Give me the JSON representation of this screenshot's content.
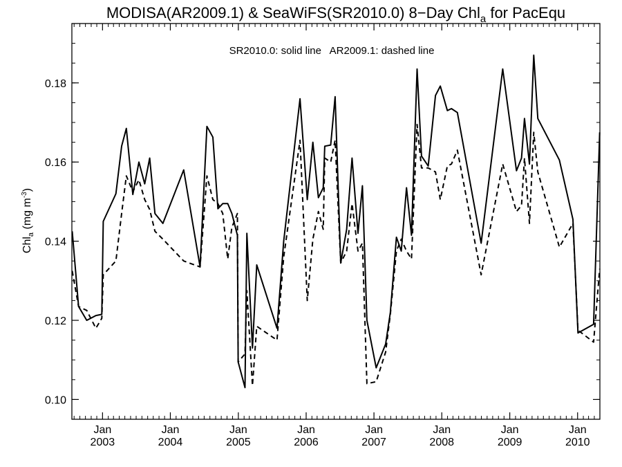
{
  "chart_data": {
    "type": "line",
    "title": {
      "main": "MODISA(AR2009.1) & SeaWiFS(SR2010.0) 8−Day Chl",
      "sub": "a",
      "suffix": " for PacEqu"
    },
    "annotation": "SR2010.0: solid line   AR2009.1: dashed line",
    "ylabel": {
      "base": "Chl",
      "sub": "a",
      "unit_open": " (mg m",
      "sup": "-3",
      "unit_close": ")"
    },
    "xlim": [
      "2002-07-20",
      "2010-05-01"
    ],
    "ylim": [
      0.095,
      0.195
    ],
    "y_ticks": [
      {
        "value": 0.1,
        "label": "0.10"
      },
      {
        "value": 0.12,
        "label": "0.12"
      },
      {
        "value": 0.14,
        "label": "0.14"
      },
      {
        "value": 0.16,
        "label": "0.16"
      },
      {
        "value": 0.18,
        "label": "0.18"
      }
    ],
    "x_ticks": [
      {
        "date": "2003-01-01",
        "month": "Jan",
        "year": "2003"
      },
      {
        "date": "2004-01-01",
        "month": "Jan",
        "year": "2004"
      },
      {
        "date": "2005-01-01",
        "month": "Jan",
        "year": "2005"
      },
      {
        "date": "2006-01-01",
        "month": "Jan",
        "year": "2006"
      },
      {
        "date": "2007-01-01",
        "month": "Jan",
        "year": "2007"
      },
      {
        "date": "2008-01-01",
        "month": "Jan",
        "year": "2008"
      },
      {
        "date": "2009-01-01",
        "month": "Jan",
        "year": "2009"
      },
      {
        "date": "2010-01-01",
        "month": "Jan",
        "year": "2010"
      }
    ],
    "series": [
      {
        "style": "solid",
        "points": [
          [
            "2002-07-22",
            0.1425
          ],
          [
            "2002-08-25",
            0.1235
          ],
          [
            "2002-10-08",
            0.12
          ],
          [
            "2002-11-26",
            0.1212
          ],
          [
            "2002-12-28",
            0.1215
          ],
          [
            "2003-01-05",
            0.145
          ],
          [
            "2003-03-14",
            0.152
          ],
          [
            "2003-04-14",
            0.164
          ],
          [
            "2003-05-09",
            0.1685
          ],
          [
            "2003-06-13",
            0.1518
          ],
          [
            "2003-07-16",
            0.16
          ],
          [
            "2003-08-16",
            0.1545
          ],
          [
            "2003-09-12",
            0.161
          ],
          [
            "2003-10-10",
            0.147
          ],
          [
            "2003-11-22",
            0.1445
          ],
          [
            "2004-03-13",
            0.158
          ],
          [
            "2004-06-09",
            0.1335
          ],
          [
            "2004-07-16",
            0.169
          ],
          [
            "2004-08-17",
            0.1663
          ],
          [
            "2004-09-13",
            0.1482
          ],
          [
            "2004-10-09",
            0.1495
          ],
          [
            "2004-11-05",
            0.1495
          ],
          [
            "2004-11-27",
            0.147
          ],
          [
            "2004-12-27",
            0.1415
          ],
          [
            "2004-12-31",
            0.1095
          ],
          [
            "2005-02-06",
            0.103
          ],
          [
            "2005-02-16",
            0.142
          ],
          [
            "2005-03-18",
            0.113
          ],
          [
            "2005-04-10",
            0.134
          ],
          [
            "2005-07-28",
            0.118
          ],
          [
            "2005-09-02",
            0.14
          ],
          [
            "2005-11-29",
            0.176
          ],
          [
            "2006-01-07",
            0.1505
          ],
          [
            "2006-02-06",
            0.165
          ],
          [
            "2006-03-08",
            0.151
          ],
          [
            "2006-04-03",
            0.1535
          ],
          [
            "2006-04-11",
            0.164
          ],
          [
            "2006-05-13",
            0.1643
          ],
          [
            "2006-06-06",
            0.1765
          ],
          [
            "2006-07-06",
            0.1345
          ],
          [
            "2006-08-07",
            0.143
          ],
          [
            "2006-09-05",
            0.161
          ],
          [
            "2006-10-07",
            0.142
          ],
          [
            "2006-10-31",
            0.154
          ],
          [
            "2006-11-24",
            0.12
          ],
          [
            "2007-01-13",
            0.108
          ],
          [
            "2007-03-05",
            0.114
          ],
          [
            "2007-03-30",
            0.122
          ],
          [
            "2007-05-02",
            0.141
          ],
          [
            "2007-05-28",
            0.1375
          ],
          [
            "2007-06-25",
            0.1535
          ],
          [
            "2007-07-22",
            0.1415
          ],
          [
            "2007-08-21",
            0.1835
          ],
          [
            "2007-09-14",
            0.1615
          ],
          [
            "2007-10-20",
            0.159
          ],
          [
            "2007-11-28",
            0.1768
          ],
          [
            "2007-12-24",
            0.1792
          ],
          [
            "2008-01-31",
            0.173
          ],
          [
            "2008-02-22",
            0.1735
          ],
          [
            "2008-03-25",
            0.1725
          ],
          [
            "2008-07-31",
            0.1395
          ],
          [
            "2008-11-24",
            0.1835
          ],
          [
            "2009-02-06",
            0.1578
          ],
          [
            "2009-03-05",
            0.161
          ],
          [
            "2009-03-21",
            0.171
          ],
          [
            "2009-04-17",
            0.1595
          ],
          [
            "2009-05-10",
            0.187
          ],
          [
            "2009-06-01",
            0.171
          ],
          [
            "2009-09-25",
            0.1605
          ],
          [
            "2009-12-07",
            0.1455
          ],
          [
            "2010-01-03",
            0.1168
          ],
          [
            "2010-03-28",
            0.119
          ],
          [
            "2010-04-30",
            0.1675
          ]
        ]
      },
      {
        "style": "dashed",
        "points": [
          [
            "2002-07-22",
            0.1325
          ],
          [
            "2002-08-25",
            0.1235
          ],
          [
            "2002-10-08",
            0.1225
          ],
          [
            "2002-11-26",
            0.118
          ],
          [
            "2002-12-28",
            0.1205
          ],
          [
            "2003-01-05",
            0.1315
          ],
          [
            "2003-03-14",
            0.135
          ],
          [
            "2003-04-14",
            0.147
          ],
          [
            "2003-05-09",
            0.1565
          ],
          [
            "2003-06-13",
            0.1525
          ],
          [
            "2003-07-16",
            0.1555
          ],
          [
            "2003-08-16",
            0.1505
          ],
          [
            "2003-09-12",
            0.148
          ],
          [
            "2003-10-10",
            0.1425
          ],
          [
            "2003-11-22",
            0.1405
          ],
          [
            "2004-03-13",
            0.135
          ],
          [
            "2004-06-09",
            0.1335
          ],
          [
            "2004-07-16",
            0.1565
          ],
          [
            "2004-08-17",
            0.1505
          ],
          [
            "2004-09-13",
            0.1495
          ],
          [
            "2004-10-09",
            0.147
          ],
          [
            "2004-11-05",
            0.1355
          ],
          [
            "2004-11-27",
            0.1435
          ],
          [
            "2004-12-27",
            0.147
          ],
          [
            "2004-12-31",
            0.1095
          ],
          [
            "2005-02-06",
            0.1115
          ],
          [
            "2005-02-16",
            0.1275
          ],
          [
            "2005-03-18",
            0.1035
          ],
          [
            "2005-04-10",
            0.1185
          ],
          [
            "2005-07-28",
            0.115
          ],
          [
            "2005-09-02",
            0.136
          ],
          [
            "2005-11-29",
            0.1655
          ],
          [
            "2006-01-07",
            0.125
          ],
          [
            "2006-02-06",
            0.1405
          ],
          [
            "2006-03-08",
            0.1475
          ],
          [
            "2006-04-03",
            0.143
          ],
          [
            "2006-04-11",
            0.161
          ],
          [
            "2006-05-13",
            0.16
          ],
          [
            "2006-06-06",
            0.1655
          ],
          [
            "2006-07-06",
            0.1345
          ],
          [
            "2006-08-07",
            0.1375
          ],
          [
            "2006-09-05",
            0.1495
          ],
          [
            "2006-10-07",
            0.1375
          ],
          [
            "2006-10-31",
            0.1395
          ],
          [
            "2006-11-24",
            0.104
          ],
          [
            "2007-01-13",
            0.1045
          ],
          [
            "2007-03-05",
            0.112
          ],
          [
            "2007-03-30",
            0.1215
          ],
          [
            "2007-05-02",
            0.1375
          ],
          [
            "2007-05-28",
            0.1405
          ],
          [
            "2007-06-25",
            0.1375
          ],
          [
            "2007-07-22",
            0.1355
          ],
          [
            "2007-08-21",
            0.1695
          ],
          [
            "2007-09-14",
            0.1585
          ],
          [
            "2007-10-20",
            0.1585
          ],
          [
            "2007-11-28",
            0.1575
          ],
          [
            "2007-12-24",
            0.1505
          ],
          [
            "2008-01-31",
            0.159
          ],
          [
            "2008-02-22",
            0.1595
          ],
          [
            "2008-03-25",
            0.163
          ],
          [
            "2008-07-31",
            0.1315
          ],
          [
            "2008-11-24",
            0.1595
          ],
          [
            "2009-02-06",
            0.1475
          ],
          [
            "2009-03-05",
            0.149
          ],
          [
            "2009-03-21",
            0.161
          ],
          [
            "2009-04-17",
            0.1445
          ],
          [
            "2009-05-10",
            0.1675
          ],
          [
            "2009-06-01",
            0.1575
          ],
          [
            "2009-09-25",
            0.1385
          ],
          [
            "2009-12-07",
            0.1445
          ],
          [
            "2010-01-03",
            0.1175
          ],
          [
            "2010-03-28",
            0.1145
          ],
          [
            "2010-04-30",
            0.133
          ]
        ]
      }
    ],
    "grid": false,
    "legend": "none"
  }
}
